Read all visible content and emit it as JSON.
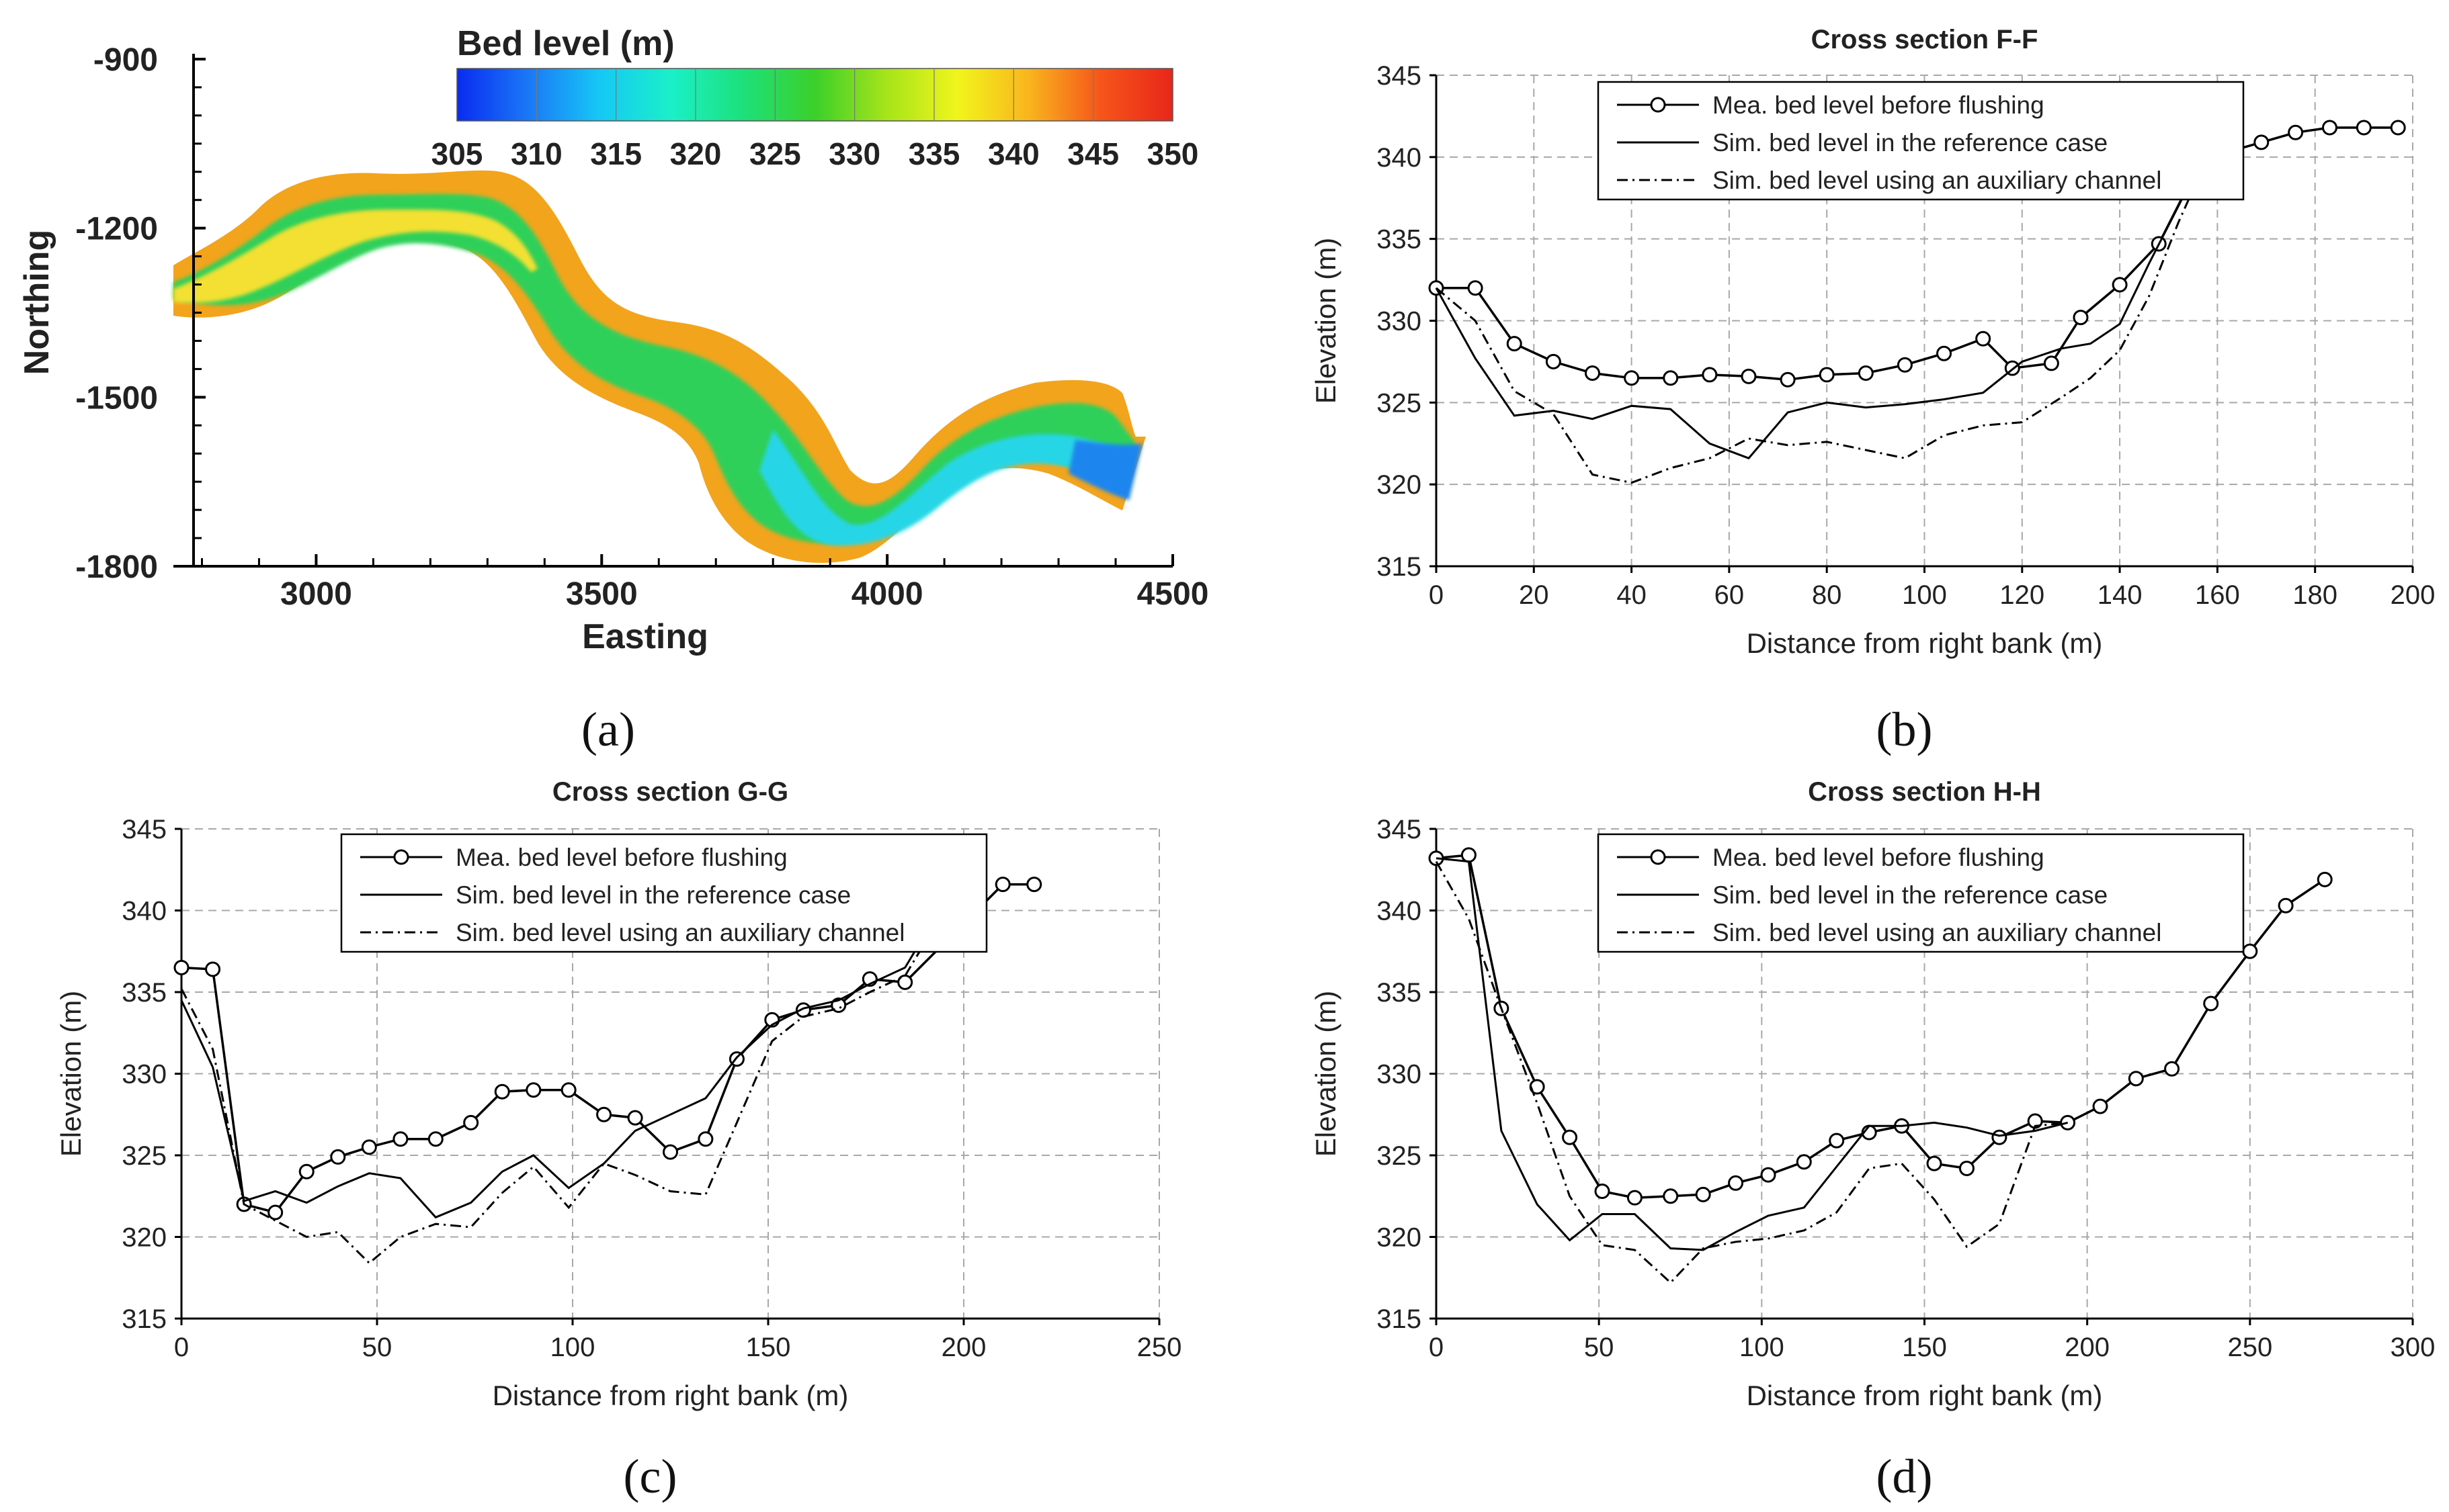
{
  "colors": {
    "axis": "#000000",
    "grid": "#a8a8a8",
    "legend_border": "#000000"
  },
  "map": {
    "panel_label": "(a)",
    "xlabel": "Easting",
    "ylabel": "Northing",
    "xticks": [
      "3000",
      "3500",
      "4000",
      "4500"
    ],
    "yticks": [
      "-900",
      "-1200",
      "-1500",
      "-1800"
    ],
    "colorbar": {
      "title": "Bed level (m)",
      "ticks": [
        "305",
        "310",
        "315",
        "320",
        "325",
        "330",
        "335",
        "340",
        "345",
        "350"
      ],
      "colors": [
        "#0a2cf0",
        "#1b78f7",
        "#16c8f5",
        "#1af0c8",
        "#1de07a",
        "#3bd02a",
        "#a6e41a",
        "#f1f51c",
        "#f9b41d",
        "#f5551a",
        "#e8261a"
      ]
    }
  },
  "legend": {
    "measured": "Mea. bed level before flushing",
    "reference": "Sim. bed level in the reference case",
    "auxiliary": "Sim. bed level using an auxiliary channel"
  },
  "chart_data": [
    {
      "panel_label": "(b)",
      "type": "line",
      "title": "Cross section F-F",
      "xlabel": "Distance from right bank (m)",
      "ylabel": "Elevation (m)",
      "xlim": [
        0,
        200
      ],
      "ylim": [
        315,
        345
      ],
      "xticks": [
        0,
        20,
        40,
        60,
        80,
        100,
        120,
        140,
        160,
        180,
        200
      ],
      "yticks": [
        315,
        320,
        325,
        330,
        335,
        340,
        345
      ],
      "series": [
        {
          "name": "Mea. bed level before flushing",
          "style": "circle",
          "x": [
            0,
            8,
            16,
            24,
            32,
            40,
            48,
            56,
            64,
            72,
            80,
            88,
            96,
            104,
            112,
            118,
            126,
            132,
            140,
            148,
            156,
            162,
            169,
            176,
            183,
            190,
            197
          ],
          "y": [
            332,
            332,
            328.6,
            327.5,
            326.8,
            326.5,
            326.5,
            326.7,
            326.6,
            326.4,
            326.7,
            326.8,
            327.3,
            328,
            328.9,
            327.1,
            327.4,
            330.2,
            332.2,
            334.7,
            339.4,
            340.3,
            340.9,
            341.5,
            341.8,
            341.8,
            341.8
          ]
        },
        {
          "name": "Sim. bed level in the reference case",
          "style": "solid",
          "x": [
            0,
            8,
            16,
            24,
            32,
            40,
            48,
            56,
            64,
            72,
            80,
            88,
            96,
            104,
            112,
            120,
            128,
            134,
            140,
            146,
            152,
            157
          ],
          "y": [
            332,
            327.7,
            324.2,
            324.5,
            324,
            324.8,
            324.6,
            322.5,
            321.6,
            324.4,
            325,
            324.7,
            324.9,
            325.2,
            325.6,
            327.5,
            328.3,
            328.6,
            329.8,
            333.5,
            337,
            340
          ]
        },
        {
          "name": "Sim. bed level using an auxiliary channel",
          "style": "dashdot",
          "x": [
            0,
            8,
            16,
            24,
            32,
            40,
            48,
            56,
            64,
            72,
            80,
            88,
            96,
            104,
            112,
            120,
            128,
            134,
            140,
            146,
            152,
            158
          ],
          "y": [
            332,
            330,
            325.7,
            324.3,
            320.6,
            320.1,
            321,
            321.6,
            322.8,
            322.4,
            322.6,
            322.1,
            321.6,
            323,
            323.6,
            323.8,
            325.3,
            326.5,
            328.2,
            331.5,
            336,
            340
          ]
        }
      ]
    },
    {
      "panel_label": "(c)",
      "type": "line",
      "title": "Cross section G-G",
      "xlabel": "Distance from right bank (m)",
      "ylabel": "Elevation (m)",
      "xlim": [
        0,
        250
      ],
      "ylim": [
        315,
        345
      ],
      "xticks": [
        0,
        50,
        100,
        150,
        200,
        250
      ],
      "yticks": [
        315,
        320,
        325,
        330,
        335,
        340,
        345
      ],
      "series": [
        {
          "name": "Mea. bed level before flushing",
          "style": "circle",
          "x": [
            0,
            8,
            16,
            24,
            32,
            40,
            48,
            56,
            65,
            74,
            82,
            90,
            99,
            108,
            116,
            125,
            134,
            142,
            151,
            159,
            168,
            176,
            185,
            210,
            218
          ],
          "y": [
            336.5,
            336.4,
            322,
            321.5,
            324,
            324.9,
            325.5,
            326,
            326,
            327,
            328.9,
            329,
            329,
            327.5,
            327.3,
            325.2,
            326,
            330.9,
            333.3,
            333.9,
            334.2,
            335.8,
            335.6,
            341.6,
            341.6
          ]
        },
        {
          "name": "Sim. bed level in the reference case",
          "style": "solid",
          "x": [
            0,
            8,
            16,
            24,
            32,
            40,
            48,
            56,
            65,
            74,
            82,
            90,
            99,
            108,
            116,
            125,
            134,
            142,
            151,
            159,
            168,
            176,
            185,
            190
          ],
          "y": [
            334.5,
            330.4,
            322.2,
            322.8,
            322.1,
            323.1,
            323.9,
            323.6,
            321.2,
            322.1,
            324,
            325,
            323,
            324.5,
            326.5,
            327.5,
            328.5,
            331,
            333,
            334,
            334.5,
            335.5,
            336.5,
            338.5
          ]
        },
        {
          "name": "Sim. bed level using an auxiliary channel",
          "style": "dashdot",
          "x": [
            0,
            8,
            16,
            24,
            32,
            40,
            48,
            56,
            65,
            74,
            82,
            90,
            99,
            108,
            116,
            125,
            134,
            142,
            151,
            159,
            168,
            176,
            185,
            190
          ],
          "y": [
            335.2,
            331.5,
            322,
            321,
            320,
            320.3,
            318.4,
            320,
            320.8,
            320.6,
            322.7,
            324.3,
            321.8,
            324.5,
            323.8,
            322.8,
            322.6,
            327,
            332,
            333.5,
            334,
            335,
            336,
            338
          ]
        }
      ]
    },
    {
      "panel_label": "(d)",
      "type": "line",
      "title": "Cross section H-H",
      "xlabel": "Distance from right bank (m)",
      "ylabel": "Elevation (m)",
      "xlim": [
        0,
        300
      ],
      "ylim": [
        315,
        345
      ],
      "xticks": [
        0,
        50,
        100,
        150,
        200,
        250,
        300
      ],
      "yticks": [
        315,
        320,
        325,
        330,
        335,
        340,
        345
      ],
      "series": [
        {
          "name": "Mea. bed level before flushing",
          "style": "circle",
          "x": [
            0,
            10,
            20,
            31,
            41,
            51,
            61,
            72,
            82,
            92,
            102,
            113,
            123,
            133,
            143,
            153,
            163,
            173,
            184,
            194,
            204,
            215,
            226,
            238,
            250,
            261,
            273
          ],
          "y": [
            343.2,
            343.4,
            334,
            329.2,
            326.1,
            322.8,
            322.4,
            322.5,
            322.6,
            323.3,
            323.8,
            324.6,
            325.9,
            326.4,
            326.8,
            324.5,
            324.2,
            326.1,
            327.1,
            327,
            328,
            329.7,
            330.3,
            334.3,
            337.5,
            340.3,
            341.9
          ]
        },
        {
          "name": "Sim. bed level in the reference case",
          "style": "solid",
          "x": [
            0,
            10,
            20,
            31,
            41,
            51,
            61,
            72,
            82,
            92,
            102,
            113,
            123,
            133,
            143,
            153,
            163,
            173,
            184,
            194
          ],
          "y": [
            343.2,
            343,
            326.5,
            322,
            319.8,
            321.4,
            321.4,
            319.3,
            319.2,
            320.3,
            321.3,
            321.8,
            324.3,
            326.8,
            326.8,
            327,
            326.7,
            326.2,
            326.5,
            327
          ]
        },
        {
          "name": "Sim. bed level using an auxiliary channel",
          "style": "dashdot",
          "x": [
            0,
            10,
            20,
            31,
            41,
            51,
            61,
            72,
            82,
            92,
            102,
            113,
            123,
            133,
            143,
            153,
            163,
            173,
            184,
            194
          ],
          "y": [
            343,
            339.5,
            334,
            328.2,
            322.5,
            319.5,
            319.2,
            317.2,
            319.3,
            319.7,
            319.9,
            320.4,
            321.5,
            324.2,
            324.5,
            322.3,
            319.4,
            320.8,
            326.8,
            327
          ]
        }
      ]
    }
  ]
}
